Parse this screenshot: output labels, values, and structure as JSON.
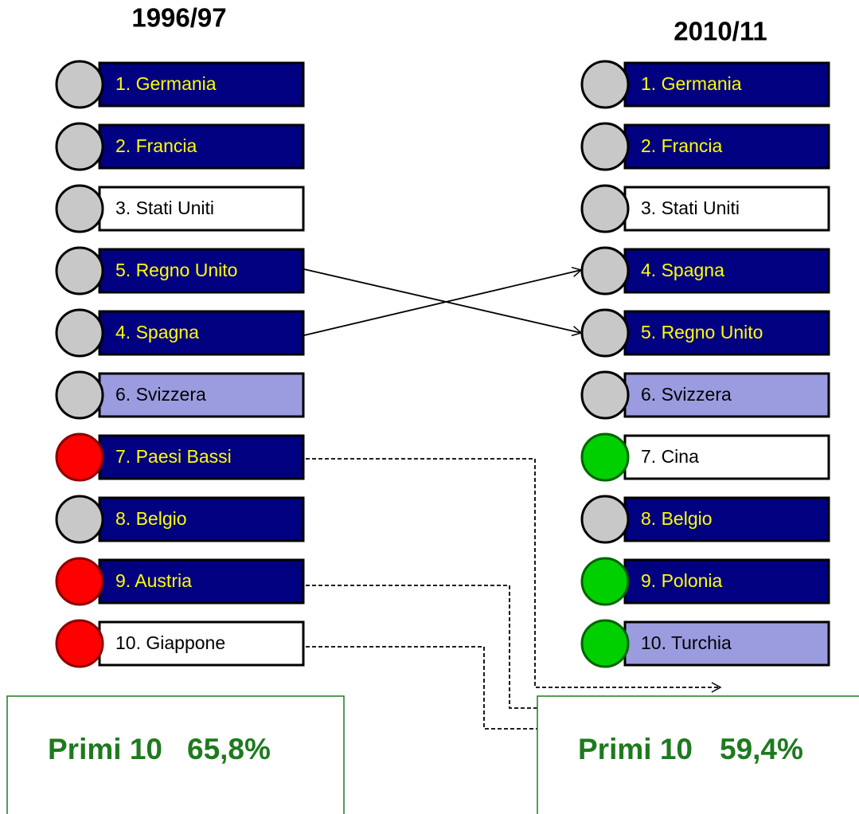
{
  "left": {
    "title": "1996/97",
    "items": [
      {
        "label": "1. Germania",
        "box_color": "#000080",
        "text_color": "#ffff00",
        "circle_color": "#c8c8c8",
        "circle_stroke": "#000000"
      },
      {
        "label": "2. Francia",
        "box_color": "#000080",
        "text_color": "#ffff00",
        "circle_color": "#c8c8c8",
        "circle_stroke": "#000000"
      },
      {
        "label": "3. Stati Uniti",
        "box_color": "#ffffff",
        "text_color": "#000000",
        "circle_color": "#c8c8c8",
        "circle_stroke": "#000000"
      },
      {
        "label": "5. Regno Unito",
        "box_color": "#000080",
        "text_color": "#ffff00",
        "circle_color": "#c8c8c8",
        "circle_stroke": "#000000"
      },
      {
        "label": "4. Spagna",
        "box_color": "#000080",
        "text_color": "#ffff00",
        "circle_color": "#c8c8c8",
        "circle_stroke": "#000000"
      },
      {
        "label": "6. Svizzera",
        "box_color": "#9b9be0",
        "text_color": "#000000",
        "circle_color": "#c8c8c8",
        "circle_stroke": "#000000"
      },
      {
        "label": "7. Paesi Bassi",
        "box_color": "#000080",
        "text_color": "#ffff00",
        "circle_color": "#ff0000",
        "circle_stroke": "#8b0000"
      },
      {
        "label": "8. Belgio",
        "box_color": "#000080",
        "text_color": "#ffff00",
        "circle_color": "#c8c8c8",
        "circle_stroke": "#000000"
      },
      {
        "label": "9. Austria",
        "box_color": "#000080",
        "text_color": "#ffff00",
        "circle_color": "#ff0000",
        "circle_stroke": "#8b0000"
      },
      {
        "label": "10. Giappone",
        "box_color": "#ffffff",
        "text_color": "#000000",
        "circle_color": "#ff0000",
        "circle_stroke": "#8b0000"
      }
    ],
    "footer": {
      "label": "Primi 10",
      "value": "65,8%"
    }
  },
  "right": {
    "title": "2010/11",
    "items": [
      {
        "label": "1. Germania",
        "box_color": "#000080",
        "text_color": "#ffff00",
        "circle_color": "#c8c8c8",
        "circle_stroke": "#000000"
      },
      {
        "label": "2. Francia",
        "box_color": "#000080",
        "text_color": "#ffff00",
        "circle_color": "#c8c8c8",
        "circle_stroke": "#000000"
      },
      {
        "label": "3. Stati Uniti",
        "box_color": "#ffffff",
        "text_color": "#000000",
        "circle_color": "#c8c8c8",
        "circle_stroke": "#000000"
      },
      {
        "label": "4. Spagna",
        "box_color": "#000080",
        "text_color": "#ffff00",
        "circle_color": "#c8c8c8",
        "circle_stroke": "#000000"
      },
      {
        "label": "5. Regno Unito",
        "box_color": "#000080",
        "text_color": "#ffff00",
        "circle_color": "#c8c8c8",
        "circle_stroke": "#000000"
      },
      {
        "label": "6. Svizzera",
        "box_color": "#9b9be0",
        "text_color": "#000000",
        "circle_color": "#c8c8c8",
        "circle_stroke": "#000000"
      },
      {
        "label": "7. Cina",
        "box_color": "#ffffff",
        "text_color": "#000000",
        "circle_color": "#00d000",
        "circle_stroke": "#006400"
      },
      {
        "label": "8. Belgio",
        "box_color": "#000080",
        "text_color": "#ffff00",
        "circle_color": "#c8c8c8",
        "circle_stroke": "#000000"
      },
      {
        "label": "9. Polonia",
        "box_color": "#000080",
        "text_color": "#ffff00",
        "circle_color": "#00d000",
        "circle_stroke": "#006400"
      },
      {
        "label": "10. Turchia",
        "box_color": "#9b9be0",
        "text_color": "#000000",
        "circle_color": "#00d000",
        "circle_stroke": "#006400"
      }
    ],
    "footer": {
      "label": "Primi 10",
      "value": "59,4%"
    }
  }
}
